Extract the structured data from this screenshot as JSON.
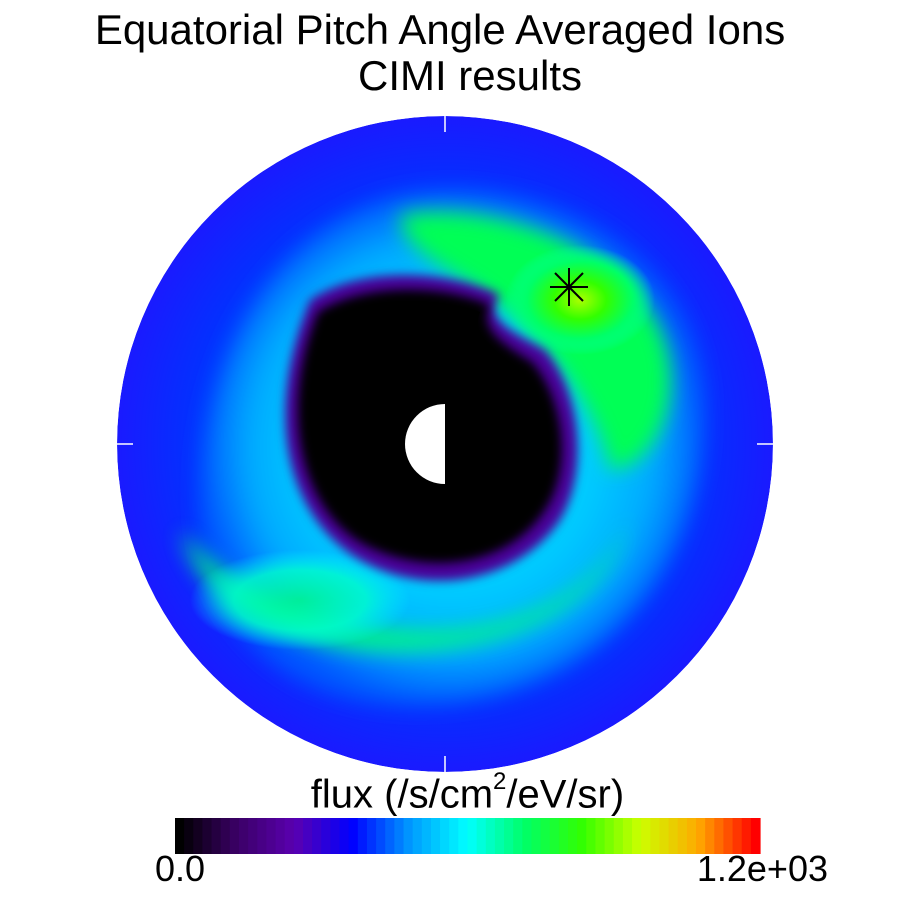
{
  "title_line1": "Equatorial Pitch Angle Averaged Ions",
  "title_line2": "CIMI results",
  "chart_data": {
    "type": "heatmap",
    "projection": "polar",
    "title": "Equatorial Pitch Angle Averaged Ions",
    "subtitle": "CIMI results",
    "colorbar": {
      "label_main": "flux (/s/cm",
      "label_sup": "2",
      "label_tail": "/eV/sr)",
      "min": 0.0,
      "max": 1200,
      "min_label": "0.0",
      "max_label": "1.2e+03",
      "colormap": [
        "#000000",
        "#3b0066",
        "#5a00b0",
        "#0000ff",
        "#0099ff",
        "#00ffff",
        "#00ff66",
        "#33ff00",
        "#ccff00",
        "#ffaa00",
        "#ff0000"
      ]
    },
    "features": {
      "dark_core": "low flux region around planet",
      "peak_marker": "asterisk near peak flux in upper-right",
      "earth_symbol": "half-lit circle at center (dayside white on left)"
    },
    "grid": false
  }
}
